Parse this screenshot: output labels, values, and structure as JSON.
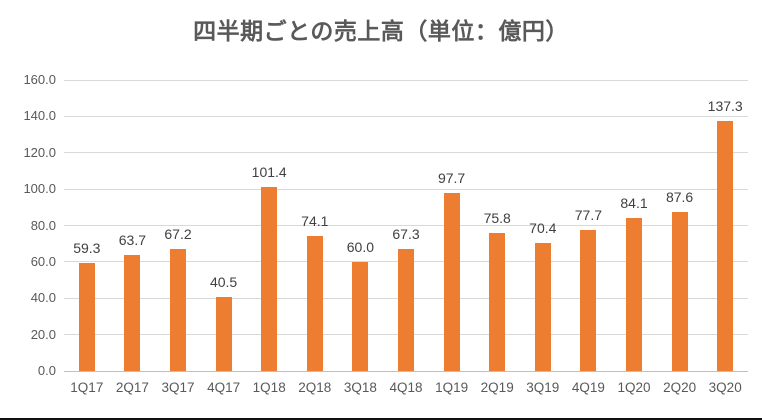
{
  "title": "四半期ごとの売上高（単位：億円）",
  "chart_data": {
    "type": "bar",
    "title": "四半期ごとの売上高（単位：億円）",
    "xlabel": "",
    "ylabel": "",
    "categories": [
      "1Q17",
      "2Q17",
      "3Q17",
      "4Q17",
      "1Q18",
      "2Q18",
      "3Q18",
      "4Q18",
      "1Q19",
      "2Q19",
      "3Q19",
      "4Q19",
      "1Q20",
      "2Q20",
      "3Q20"
    ],
    "values": [
      59.3,
      63.7,
      67.2,
      40.5,
      101.4,
      74.1,
      60.0,
      67.3,
      97.7,
      75.8,
      70.4,
      77.7,
      84.1,
      87.6,
      137.3
    ],
    "value_labels": [
      "59.3",
      "63.7",
      "67.2",
      "40.5",
      "101.4",
      "74.1",
      "60.0",
      "67.3",
      "97.7",
      "75.8",
      "70.4",
      "77.7",
      "84.1",
      "87.6",
      "137.3"
    ],
    "ylim": [
      0,
      160
    ],
    "yticks": [
      0,
      20,
      40,
      60,
      80,
      100,
      120,
      140,
      160
    ],
    "ytick_labels": [
      "0.0",
      "20.0",
      "40.0",
      "60.0",
      "80.0",
      "100.0",
      "120.0",
      "140.0",
      "160.0"
    ],
    "grid": "horizontal",
    "legend_position": "none",
    "bar_color": "#ED7D31",
    "gridline_color": "#D9D9D9",
    "axis_text_color": "#595959",
    "data_label_color": "#404040",
    "title_color": "#595959",
    "background_color": "#FFFFFF"
  }
}
